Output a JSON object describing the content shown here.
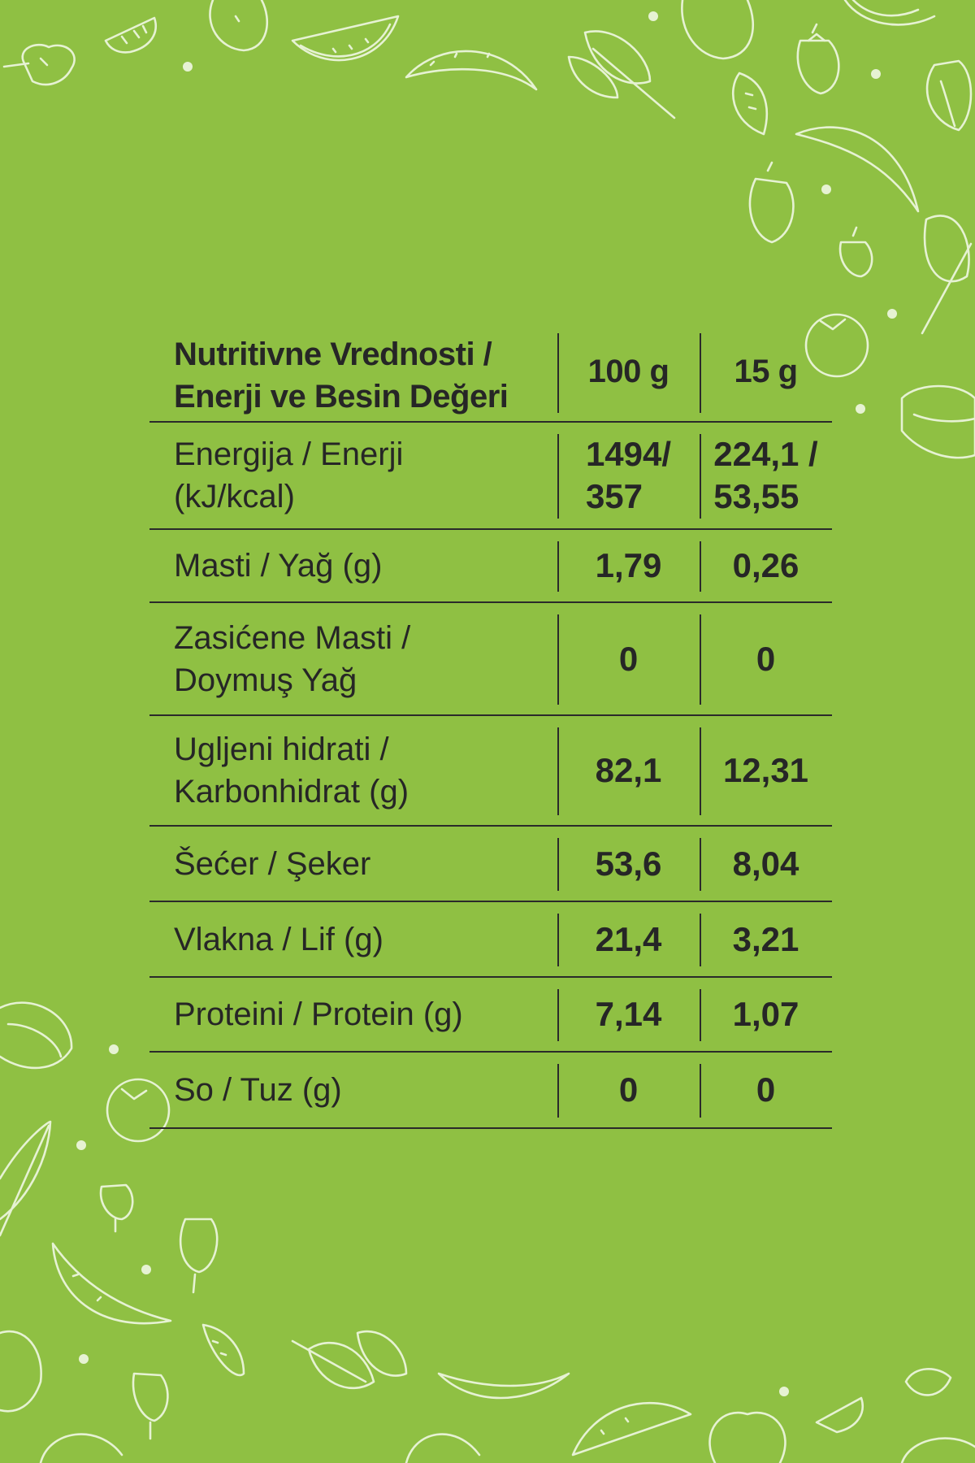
{
  "table": {
    "header": {
      "label_line1": "Nutritivne Vrednosti /",
      "label_line2": "Enerji ve Besin Değeri",
      "col1": "100 g",
      "col2": "15 g"
    },
    "rows": [
      {
        "label_line1": "Energija / Enerji",
        "label_line2": "(kJ/kcal)",
        "v1_line1": "1494/",
        "v1_line2": "357",
        "v2_line1": "224,1 /",
        "v2_line2": "53,55"
      },
      {
        "label_line1": "Masti / Yağ (g)",
        "label_line2": "",
        "v1_line1": "1,79",
        "v1_line2": "",
        "v2_line1": "0,26",
        "v2_line2": ""
      },
      {
        "label_line1": "Zasićene Masti /",
        "label_line2": "Doymuş Yağ",
        "v1_line1": "0",
        "v1_line2": "",
        "v2_line1": "0",
        "v2_line2": ""
      },
      {
        "label_line1": "Ugljeni hidrati /",
        "label_line2": "Karbonhidrat (g)",
        "v1_line1": "82,1",
        "v1_line2": "",
        "v2_line1": "12,31",
        "v2_line2": ""
      },
      {
        "label_line1": "Šećer / Şeker",
        "label_line2": "",
        "v1_line1": "53,6",
        "v1_line2": "",
        "v2_line1": "8,04",
        "v2_line2": ""
      },
      {
        "label_line1": "Vlakna / Lif (g)",
        "label_line2": "",
        "v1_line1": "21,4",
        "v1_line2": "",
        "v2_line1": "3,21",
        "v2_line2": ""
      },
      {
        "label_line1": "Proteini / Protein (g)",
        "label_line2": "",
        "v1_line1": "7,14",
        "v1_line2": "",
        "v2_line1": "1,07",
        "v2_line2": ""
      },
      {
        "label_line1": "So / Tuz (g)",
        "label_line2": "",
        "v1_line1": "0",
        "v1_line2": "",
        "v2_line1": "0",
        "v2_line2": ""
      }
    ]
  },
  "colors": {
    "background": "#8fc043",
    "doodle": "#e6f2d3",
    "text": "#262626",
    "rule": "#2a2a2a"
  },
  "decor": {
    "icons": [
      "strawberry-icon",
      "banana-icon",
      "watermelon-icon",
      "tomato-icon",
      "lemon-icon",
      "spinach-leaf-icon",
      "melon-icon",
      "heart-fruit-icon"
    ]
  }
}
